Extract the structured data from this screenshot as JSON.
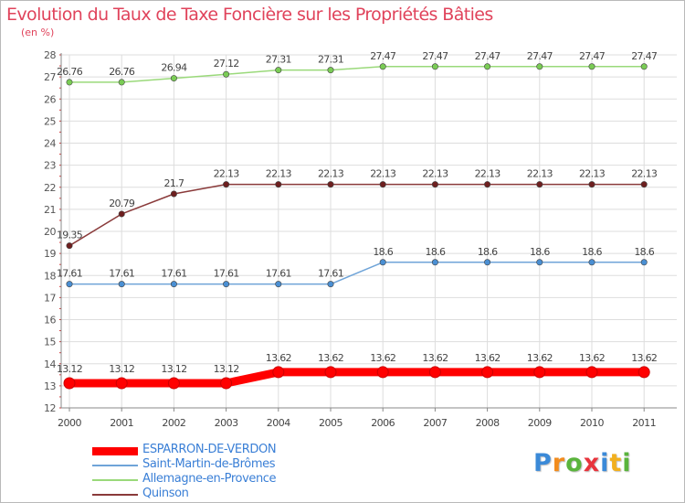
{
  "chart_data": {
    "type": "line",
    "title": "Evolution du Taux de Taxe Foncière sur les Propriétés Bâties",
    "ylabel": "(en %)",
    "xlabel": "",
    "ylim": [
      12,
      28
    ],
    "yticks": [
      12,
      13,
      14,
      15,
      16,
      17,
      18,
      19,
      20,
      21,
      22,
      23,
      24,
      25,
      26,
      27,
      28
    ],
    "categories": [
      "2000",
      "2001",
      "2002",
      "2003",
      "2004",
      "2005",
      "2006",
      "2007",
      "2008",
      "2009",
      "2010",
      "2011"
    ],
    "grid": true,
    "legend_position": "bottom-left",
    "series": [
      {
        "name": "ESPARRON-DE-VERDON",
        "color": "#ff0000",
        "marker_color": "#ff0000",
        "weight": "thick",
        "values": [
          13.12,
          13.12,
          13.12,
          13.12,
          13.62,
          13.62,
          13.62,
          13.62,
          13.62,
          13.62,
          13.62,
          13.62
        ]
      },
      {
        "name": "Saint-Martin-de-Brômes",
        "color": "#6fa4d8",
        "marker_color": "#4a8fd3",
        "weight": "thin",
        "values": [
          17.61,
          17.61,
          17.61,
          17.61,
          17.61,
          17.61,
          18.6,
          18.6,
          18.6,
          18.6,
          18.6,
          18.6
        ]
      },
      {
        "name": "Allemagne-en-Provence",
        "color": "#9ad97a",
        "marker_color": "#7acc55",
        "weight": "thin",
        "values": [
          26.76,
          26.76,
          26.94,
          27.12,
          27.31,
          27.31,
          27.47,
          27.47,
          27.47,
          27.47,
          27.47,
          27.47
        ]
      },
      {
        "name": "Quinson",
        "color": "#8a3a3a",
        "marker_color": "#6e1f1f",
        "weight": "thin",
        "values": [
          19.35,
          20.79,
          21.7,
          22.13,
          22.13,
          22.13,
          22.13,
          22.13,
          22.13,
          22.13,
          22.13,
          22.13
        ]
      }
    ],
    "data_labels": [
      [
        "13.12",
        "13.12",
        "13.12",
        "13.12",
        "13.62",
        "13.62",
        "13.62",
        "13.62",
        "13.62",
        "13.62",
        "13.62",
        "13.62"
      ],
      [
        "17.61",
        "17.61",
        "17.61",
        "17.61",
        "17.61",
        "17.61",
        "18.6",
        "18.6",
        "18.6",
        "18.6",
        "18.6",
        "18.6"
      ],
      [
        "26.76",
        "26.76",
        "26.94",
        "27.12",
        "27.31",
        "27.31",
        "27.47",
        "27.47",
        "27.47",
        "27.47",
        "27.47",
        "27.47"
      ],
      [
        "19.35",
        "20.79",
        "21.7",
        "22.13",
        "22.13",
        "22.13",
        "22.13",
        "22.13",
        "22.13",
        "22.13",
        "22.13",
        "22.13"
      ]
    ]
  },
  "logo": {
    "letters": [
      "P",
      "r",
      "o",
      "x",
      "i",
      "t",
      "i"
    ],
    "colors": [
      "#3b8ad8",
      "#f28c1e",
      "#5ab43c",
      "#e8343c",
      "#3b8ad8",
      "#f2b01e",
      "#5ab43c"
    ]
  },
  "colors": {
    "title": "#e0435b",
    "axis": "#888888",
    "grid": "#dddddd",
    "legend_text": "#3a7fd6"
  }
}
